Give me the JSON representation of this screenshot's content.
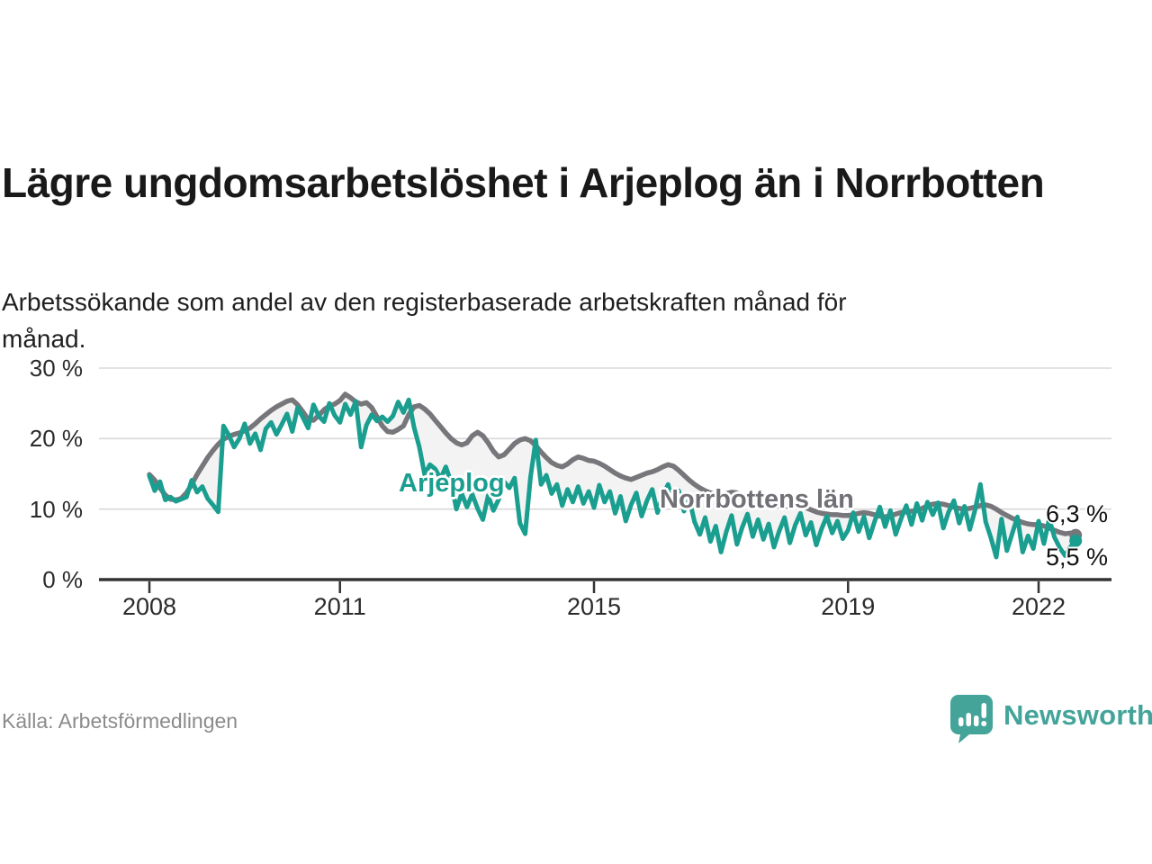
{
  "colors": {
    "arjeplog": "#1a9e8f",
    "norrbotten": "#77777b",
    "band": "#f3f3f3",
    "grid": "#d8d8d8",
    "axis": "#333333",
    "title_text": "#191919",
    "muted_text": "#8b8b8b",
    "brand": "#44a49a"
  },
  "footer": {
    "source": "Källa: Arbetsförmedlingen",
    "brand": "Newsworthy"
  },
  "chart_data": {
    "type": "line",
    "title": "Lägre ungdomsarbetslöshet i Arjeplog än i Norrbotten",
    "subtitle": "Arbetssökande som andel av den registerbaserade arbetskraften månad för månad.",
    "x_start": "2008-01",
    "x_end": "2022-08",
    "x_interval": "monthly",
    "ylim": [
      0,
      30
    ],
    "grid": "horizontal",
    "legend": "inline-labels",
    "yticks": [
      {
        "value": 30,
        "label": "30 %"
      },
      {
        "value": 20,
        "label": "20 %"
      },
      {
        "value": 10,
        "label": "10 %"
      },
      {
        "value": 0,
        "label": "0 %"
      }
    ],
    "xticks": [
      {
        "label": "2008",
        "month_index": 0
      },
      {
        "label": "2011",
        "month_index": 36
      },
      {
        "label": "2015",
        "month_index": 84
      },
      {
        "label": "2019",
        "month_index": 132
      },
      {
        "label": "2022",
        "month_index": 168
      }
    ],
    "end_labels": [
      {
        "series": "Norrbottens län",
        "label": "6,3 %"
      },
      {
        "series": "Arjeplog",
        "label": "5,5 %"
      }
    ],
    "series": [
      {
        "name": "Norrbottens län",
        "inline_label": "Norrbottens län",
        "color": "#77777b",
        "line_width": 5.5,
        "end_value": 6.3,
        "values": [
          14.9,
          14.1,
          13.0,
          12.0,
          11.4,
          11.3,
          11.5,
          12.3,
          13.5,
          14.9,
          16.1,
          17.3,
          18.3,
          19.2,
          19.9,
          20.3,
          20.6,
          20.8,
          21.1,
          21.5,
          22.1,
          22.8,
          23.4,
          24.0,
          24.5,
          24.9,
          25.3,
          25.5,
          24.8,
          23.8,
          22.7,
          22.6,
          23.3,
          24.1,
          24.6,
          24.9,
          25.4,
          26.3,
          25.8,
          25.2,
          24.9,
          25.1,
          24.4,
          23.1,
          21.8,
          21.0,
          20.9,
          21.3,
          21.8,
          23.4,
          24.5,
          24.7,
          24.2,
          23.5,
          22.6,
          21.7,
          20.8,
          20.0,
          19.4,
          19.1,
          19.4,
          20.4,
          20.9,
          20.4,
          19.4,
          18.2,
          17.4,
          17.7,
          18.5,
          19.3,
          19.8,
          20.0,
          19.7,
          19.0,
          18.1,
          17.3,
          16.6,
          16.2,
          16.0,
          16.4,
          17.0,
          17.4,
          17.2,
          16.9,
          16.8,
          16.5,
          16.1,
          15.6,
          15.1,
          14.7,
          14.4,
          14.2,
          14.5,
          14.8,
          15.1,
          15.3,
          15.6,
          16.0,
          16.3,
          16.1,
          15.5,
          14.8,
          14.1,
          13.5,
          13.0,
          12.6,
          12.3,
          12.1,
          12.0,
          12.2,
          12.4,
          12.3,
          12.0,
          11.6,
          11.2,
          10.9,
          10.7,
          10.6,
          10.5,
          10.4,
          10.4,
          10.5,
          10.6,
          10.5,
          10.2,
          9.9,
          9.6,
          9.4,
          9.3,
          9.2,
          9.2,
          9.1,
          9.1,
          9.2,
          9.4,
          9.5,
          9.4,
          9.2,
          9.0,
          8.9,
          9.0,
          9.3,
          9.5,
          9.6,
          9.7,
          9.8,
          10.1,
          10.5,
          10.7,
          10.8,
          10.7,
          10.5,
          10.3,
          10.1,
          10.0,
          10.1,
          10.3,
          10.5,
          10.6,
          10.4,
          10.0,
          9.5,
          9.1,
          8.7,
          8.4,
          8.1,
          7.9,
          7.8,
          7.8,
          7.6,
          7.3,
          7.0,
          6.7,
          6.5,
          6.6,
          6.3
        ]
      },
      {
        "name": "Arjeplog",
        "inline_label": "Arjeplog",
        "color": "#1a9e8f",
        "line_width": 5,
        "end_value": 5.5,
        "values": [
          14.7,
          12.6,
          13.9,
          11.3,
          11.7,
          11.1,
          11.4,
          11.7,
          14.1,
          12.4,
          13.2,
          11.5,
          10.6,
          9.6,
          21.8,
          20.5,
          18.8,
          20.0,
          22.1,
          19.3,
          20.7,
          18.4,
          21.4,
          22.3,
          20.6,
          22.0,
          23.5,
          21.0,
          24.4,
          23.0,
          21.5,
          24.8,
          23.2,
          22.4,
          25.0,
          23.3,
          22.3,
          24.9,
          23.4,
          25.3,
          18.8,
          21.9,
          23.4,
          22.5,
          23.1,
          22.4,
          23.2,
          25.2,
          23.7,
          25.5,
          21.6,
          18.8,
          14.9,
          16.3,
          15.7,
          14.3,
          16.0,
          13.8,
          10.0,
          12.2,
          10.3,
          12.1,
          10.1,
          8.5,
          11.9,
          9.8,
          11.4,
          13.9,
          13.0,
          14.4,
          8.0,
          6.5,
          14.5,
          19.8,
          13.5,
          14.8,
          12.2,
          13.5,
          10.5,
          12.8,
          11.0,
          13.2,
          10.8,
          12.5,
          10.2,
          13.4,
          11.0,
          12.5,
          9.4,
          11.8,
          8.3,
          10.6,
          12.3,
          9.0,
          11.2,
          12.8,
          9.5,
          12.0,
          13.5,
          10.8,
          12.6,
          9.7,
          11.4,
          8.2,
          6.4,
          8.8,
          5.4,
          7.6,
          3.9,
          6.8,
          9.1,
          5.0,
          7.4,
          9.3,
          6.1,
          8.5,
          5.7,
          7.9,
          4.6,
          6.9,
          8.8,
          5.2,
          7.7,
          9.4,
          6.3,
          8.1,
          4.9,
          7.2,
          9.0,
          6.6,
          8.3,
          5.8,
          7.0,
          9.5,
          6.8,
          8.9,
          5.9,
          8.2,
          10.3,
          7.5,
          9.8,
          6.4,
          8.6,
          10.5,
          7.8,
          10.8,
          8.4,
          11.0,
          9.2,
          10.9,
          7.3,
          9.6,
          11.2,
          8.0,
          10.4,
          7.1,
          9.9,
          13.5,
          8.2,
          5.9,
          3.2,
          8.6,
          4.1,
          6.5,
          8.9,
          3.9,
          6.2,
          4.4,
          8.3,
          5.1,
          8.6,
          6.0,
          4.5,
          3.4,
          4.6,
          5.5
        ]
      }
    ]
  }
}
